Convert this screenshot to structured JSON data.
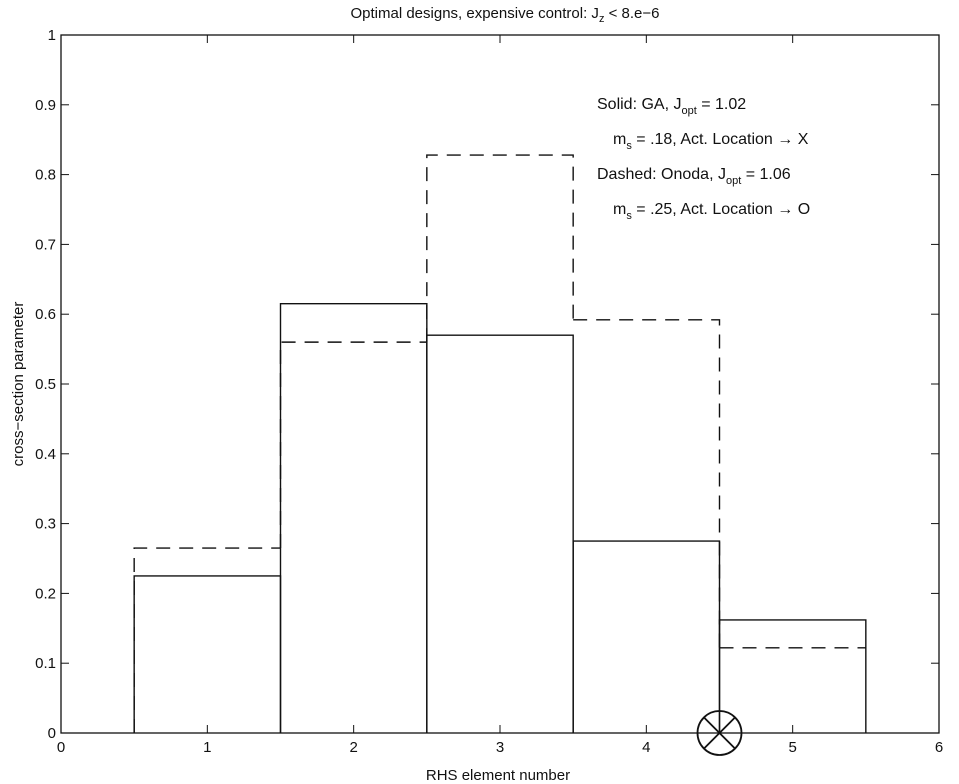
{
  "chart_data": {
    "type": "bar",
    "title": "Optimal designs, expensive control: J",
    "title_sub": "z",
    "title_tail": " < 8.e−6",
    "xlabel": "RHS element number",
    "ylabel": "cross−section parameter",
    "xlim": [
      0,
      6
    ],
    "ylim": [
      0,
      1
    ],
    "xticks": [
      "0",
      "1",
      "2",
      "3",
      "4",
      "5",
      "6"
    ],
    "yticks": [
      "0",
      "0.1",
      "0.2",
      "0.3",
      "0.4",
      "0.5",
      "0.6",
      "0.7",
      "0.8",
      "0.9",
      "1"
    ],
    "categories": [
      1,
      2,
      3,
      4,
      5
    ],
    "series": [
      {
        "style": "solid",
        "values": [
          0.225,
          0.615,
          0.57,
          0.275,
          0.162
        ]
      },
      {
        "style": "dashed",
        "values": [
          0.265,
          0.56,
          0.828,
          0.592,
          0.122
        ]
      }
    ],
    "actuator_location": {
      "x": 4.5,
      "y": 0,
      "markers": [
        "X",
        "O"
      ]
    },
    "annotations": [
      {
        "parts": [
          "Solid: GA, J",
          "opt",
          " = 1.02"
        ]
      },
      {
        "parts": [
          "m",
          "s",
          " = .18, Act. Location → X"
        ]
      },
      {
        "parts": [
          "Dashed: Onoda, J",
          "opt",
          " = 1.06"
        ]
      },
      {
        "parts": [
          "m",
          "s",
          " = .25, Act. Location → O"
        ]
      }
    ]
  }
}
